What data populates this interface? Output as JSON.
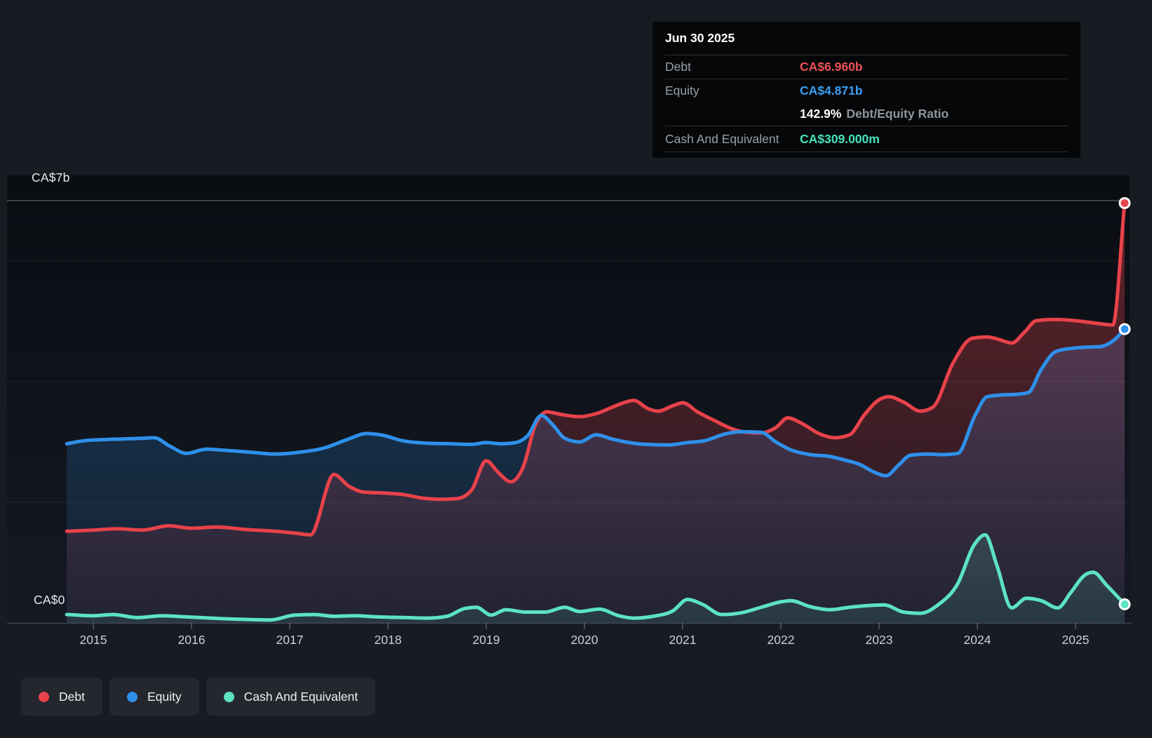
{
  "tooltip": {
    "date": "Jun 30 2025",
    "debt_label": "Debt",
    "debt_value": "CA$6.960b",
    "equity_label": "Equity",
    "equity_value": "CA$4.871b",
    "ratio_value": "142.9%",
    "ratio_label": "Debt/Equity Ratio",
    "cash_label": "Cash And Equivalent",
    "cash_value": "CA$309.000m"
  },
  "legend": {
    "debt": "Debt",
    "equity": "Equity",
    "cash": "Cash And Equivalent"
  },
  "colors": {
    "debt": "#e8424a",
    "equity": "#2e90ea",
    "cash": "#5ce3c3",
    "debt_text": "#ee5158",
    "equity_text": "#39a0f4",
    "cash_text": "#45e3bf",
    "grid_bright": "rgba(255,255,255,0.28)",
    "grid_faint": "rgba(255,255,255,0.07)",
    "axis_line": "rgba(255,255,255,0.17)",
    "tick_label": "#ccd0d6"
  },
  "chart_data": {
    "type": "area",
    "title": "",
    "xlabel": "",
    "ylabel": "",
    "y_top_label": "CA$7b",
    "y_zero_label": "CA$0",
    "y_unit": "CA$ billions",
    "ylim": [
      0,
      7
    ],
    "gridline_values": [
      7,
      6,
      4,
      2
    ],
    "x_tick_years": [
      2015,
      2016,
      2017,
      2018,
      2019,
      2020,
      2021,
      2022,
      2023,
      2024,
      2025
    ],
    "x_range": [
      2014.73,
      2025.5
    ],
    "legend_position": "bottom-left",
    "series": [
      {
        "name": "Debt",
        "color_key": "debt",
        "end_value_billions": 6.96,
        "points": [
          [
            2014.73,
            1.52
          ],
          [
            2015.0,
            1.54
          ],
          [
            2015.25,
            1.56
          ],
          [
            2015.5,
            1.54
          ],
          [
            2015.77,
            1.61
          ],
          [
            2016.0,
            1.57
          ],
          [
            2016.25,
            1.59
          ],
          [
            2016.55,
            1.55
          ],
          [
            2016.85,
            1.52
          ],
          [
            2017.05,
            1.49
          ],
          [
            2017.21,
            1.46
          ],
          [
            2017.45,
            2.46
          ],
          [
            2017.6,
            2.27
          ],
          [
            2017.75,
            2.17
          ],
          [
            2018.0,
            2.15
          ],
          [
            2018.15,
            2.13
          ],
          [
            2018.35,
            2.07
          ],
          [
            2018.55,
            2.05
          ],
          [
            2018.7,
            2.06
          ],
          [
            2018.85,
            2.2
          ],
          [
            2019.0,
            2.69
          ],
          [
            2019.12,
            2.5
          ],
          [
            2019.25,
            2.34
          ],
          [
            2019.38,
            2.6
          ],
          [
            2019.5,
            3.28
          ],
          [
            2019.62,
            3.5
          ],
          [
            2019.75,
            3.46
          ],
          [
            2019.95,
            3.42
          ],
          [
            2020.12,
            3.47
          ],
          [
            2020.35,
            3.62
          ],
          [
            2020.5,
            3.69
          ],
          [
            2020.65,
            3.55
          ],
          [
            2020.75,
            3.51
          ],
          [
            2020.9,
            3.6
          ],
          [
            2021.0,
            3.65
          ],
          [
            2021.15,
            3.5
          ],
          [
            2021.33,
            3.35
          ],
          [
            2021.5,
            3.22
          ],
          [
            2021.65,
            3.16
          ],
          [
            2021.8,
            3.15
          ],
          [
            2021.95,
            3.24
          ],
          [
            2022.07,
            3.4
          ],
          [
            2022.2,
            3.32
          ],
          [
            2022.4,
            3.13
          ],
          [
            2022.55,
            3.07
          ],
          [
            2022.7,
            3.12
          ],
          [
            2022.85,
            3.45
          ],
          [
            2023.0,
            3.7
          ],
          [
            2023.1,
            3.75
          ],
          [
            2023.25,
            3.66
          ],
          [
            2023.42,
            3.51
          ],
          [
            2023.55,
            3.58
          ],
          [
            2023.75,
            4.3
          ],
          [
            2023.95,
            4.72
          ],
          [
            2024.1,
            4.74
          ],
          [
            2024.22,
            4.7
          ],
          [
            2024.35,
            4.64
          ],
          [
            2024.48,
            4.82
          ],
          [
            2024.6,
            5.01
          ],
          [
            2024.8,
            5.03
          ],
          [
            2025.0,
            5.01
          ],
          [
            2025.2,
            4.97
          ],
          [
            2025.38,
            4.94
          ],
          [
            2025.5,
            6.96
          ]
        ]
      },
      {
        "name": "Equity",
        "color_key": "equity",
        "end_value_billions": 4.871,
        "points": [
          [
            2014.73,
            2.97
          ],
          [
            2014.9,
            3.02
          ],
          [
            2015.1,
            3.04
          ],
          [
            2015.3,
            3.05
          ],
          [
            2015.5,
            3.06
          ],
          [
            2015.62,
            3.07
          ],
          [
            2015.78,
            2.93
          ],
          [
            2015.95,
            2.81
          ],
          [
            2016.15,
            2.88
          ],
          [
            2016.35,
            2.86
          ],
          [
            2016.6,
            2.83
          ],
          [
            2016.85,
            2.8
          ],
          [
            2017.1,
            2.83
          ],
          [
            2017.35,
            2.9
          ],
          [
            2017.6,
            3.05
          ],
          [
            2017.78,
            3.14
          ],
          [
            2017.95,
            3.11
          ],
          [
            2018.15,
            3.02
          ],
          [
            2018.4,
            2.98
          ],
          [
            2018.65,
            2.97
          ],
          [
            2018.85,
            2.96
          ],
          [
            2019.0,
            2.99
          ],
          [
            2019.15,
            2.97
          ],
          [
            2019.3,
            2.99
          ],
          [
            2019.42,
            3.1
          ],
          [
            2019.56,
            3.44
          ],
          [
            2019.68,
            3.28
          ],
          [
            2019.8,
            3.06
          ],
          [
            2019.95,
            3.0
          ],
          [
            2020.12,
            3.12
          ],
          [
            2020.28,
            3.05
          ],
          [
            2020.42,
            3.0
          ],
          [
            2020.62,
            2.96
          ],
          [
            2020.85,
            2.95
          ],
          [
            2021.05,
            2.99
          ],
          [
            2021.22,
            3.02
          ],
          [
            2021.45,
            3.14
          ],
          [
            2021.6,
            3.17
          ],
          [
            2021.8,
            3.16
          ],
          [
            2021.95,
            3.0
          ],
          [
            2022.1,
            2.87
          ],
          [
            2022.3,
            2.79
          ],
          [
            2022.5,
            2.76
          ],
          [
            2022.65,
            2.7
          ],
          [
            2022.8,
            2.63
          ],
          [
            2022.95,
            2.5
          ],
          [
            2023.07,
            2.44
          ],
          [
            2023.2,
            2.62
          ],
          [
            2023.32,
            2.78
          ],
          [
            2023.5,
            2.8
          ],
          [
            2023.65,
            2.79
          ],
          [
            2023.8,
            2.81
          ],
          [
            2023.98,
            3.45
          ],
          [
            2024.1,
            3.75
          ],
          [
            2024.25,
            3.78
          ],
          [
            2024.4,
            3.79
          ],
          [
            2024.52,
            3.82
          ],
          [
            2024.65,
            4.2
          ],
          [
            2024.8,
            4.5
          ],
          [
            2024.95,
            4.55
          ],
          [
            2025.1,
            4.57
          ],
          [
            2025.25,
            4.58
          ],
          [
            2025.4,
            4.7
          ],
          [
            2025.5,
            4.87
          ]
        ]
      },
      {
        "name": "Cash And Equivalent",
        "color_key": "cash",
        "end_value_billions": 0.309,
        "points": [
          [
            2014.73,
            0.14
          ],
          [
            2015.0,
            0.12
          ],
          [
            2015.2,
            0.14
          ],
          [
            2015.45,
            0.09
          ],
          [
            2015.7,
            0.12
          ],
          [
            2015.95,
            0.1
          ],
          [
            2016.2,
            0.08
          ],
          [
            2016.5,
            0.06
          ],
          [
            2016.8,
            0.05
          ],
          [
            2017.05,
            0.13
          ],
          [
            2017.25,
            0.14
          ],
          [
            2017.45,
            0.11
          ],
          [
            2017.65,
            0.12
          ],
          [
            2017.9,
            0.1
          ],
          [
            2018.15,
            0.09
          ],
          [
            2018.4,
            0.08
          ],
          [
            2018.6,
            0.11
          ],
          [
            2018.78,
            0.24
          ],
          [
            2018.9,
            0.26
          ],
          [
            2019.05,
            0.13
          ],
          [
            2019.2,
            0.22
          ],
          [
            2019.4,
            0.18
          ],
          [
            2019.6,
            0.18
          ],
          [
            2019.8,
            0.26
          ],
          [
            2019.95,
            0.19
          ],
          [
            2020.15,
            0.23
          ],
          [
            2020.35,
            0.12
          ],
          [
            2020.5,
            0.08
          ],
          [
            2020.7,
            0.11
          ],
          [
            2020.9,
            0.2
          ],
          [
            2021.05,
            0.39
          ],
          [
            2021.2,
            0.31
          ],
          [
            2021.4,
            0.14
          ],
          [
            2021.6,
            0.17
          ],
          [
            2021.8,
            0.26
          ],
          [
            2022.0,
            0.35
          ],
          [
            2022.1,
            0.37
          ],
          [
            2022.3,
            0.27
          ],
          [
            2022.5,
            0.22
          ],
          [
            2022.7,
            0.26
          ],
          [
            2022.9,
            0.29
          ],
          [
            2023.05,
            0.3
          ],
          [
            2023.25,
            0.18
          ],
          [
            2023.42,
            0.16
          ],
          [
            2023.6,
            0.3
          ],
          [
            2023.8,
            0.65
          ],
          [
            2023.97,
            1.3
          ],
          [
            2024.08,
            1.46
          ],
          [
            2024.2,
            0.95
          ],
          [
            2024.35,
            0.25
          ],
          [
            2024.5,
            0.41
          ],
          [
            2024.65,
            0.37
          ],
          [
            2024.82,
            0.25
          ],
          [
            2024.95,
            0.5
          ],
          [
            2025.1,
            0.8
          ],
          [
            2025.18,
            0.84
          ],
          [
            2025.32,
            0.62
          ],
          [
            2025.5,
            0.31
          ]
        ]
      }
    ],
    "end_markers": [
      {
        "series": "Debt",
        "t": 2025.5,
        "value": 6.96
      },
      {
        "series": "Equity",
        "t": 2025.5,
        "value": 4.871
      },
      {
        "series": "Cash And Equivalent",
        "t": 2025.5,
        "value": 0.309
      }
    ]
  }
}
